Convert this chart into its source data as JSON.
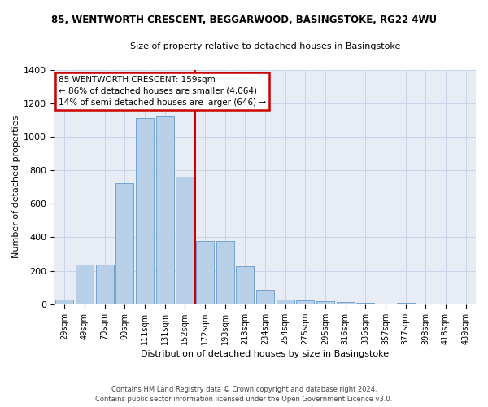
{
  "title": "85, WENTWORTH CRESCENT, BEGGARWOOD, BASINGSTOKE, RG22 4WU",
  "subtitle": "Size of property relative to detached houses in Basingstoke",
  "xlabel": "Distribution of detached houses by size in Basingstoke",
  "ylabel": "Number of detached properties",
  "categories": [
    "29sqm",
    "49sqm",
    "70sqm",
    "90sqm",
    "111sqm",
    "131sqm",
    "152sqm",
    "172sqm",
    "193sqm",
    "213sqm",
    "234sqm",
    "254sqm",
    "275sqm",
    "295sqm",
    "316sqm",
    "336sqm",
    "357sqm",
    "377sqm",
    "398sqm",
    "418sqm",
    "439sqm"
  ],
  "values": [
    30,
    235,
    235,
    725,
    1110,
    1120,
    760,
    378,
    378,
    225,
    85,
    30,
    25,
    20,
    15,
    10,
    0,
    10,
    0,
    0,
    0
  ],
  "bar_color": "#b8cfe8",
  "bar_edge_color": "#6699cc",
  "vline_color": "#cc0000",
  "vline_x": 6.5,
  "annotation_text": "85 WENTWORTH CRESCENT: 159sqm\n← 86% of detached houses are smaller (4,064)\n14% of semi-detached houses are larger (646) →",
  "annotation_box_color": "white",
  "annotation_border_color": "#cc0000",
  "ylim": [
    0,
    1400
  ],
  "yticks": [
    0,
    200,
    400,
    600,
    800,
    1000,
    1200,
    1400
  ],
  "grid_color": "#c8d4e8",
  "bg_color": "#e8edf5",
  "footer_line1": "Contains HM Land Registry data © Crown copyright and database right 2024.",
  "footer_line2": "Contains public sector information licensed under the Open Government Licence v3.0."
}
